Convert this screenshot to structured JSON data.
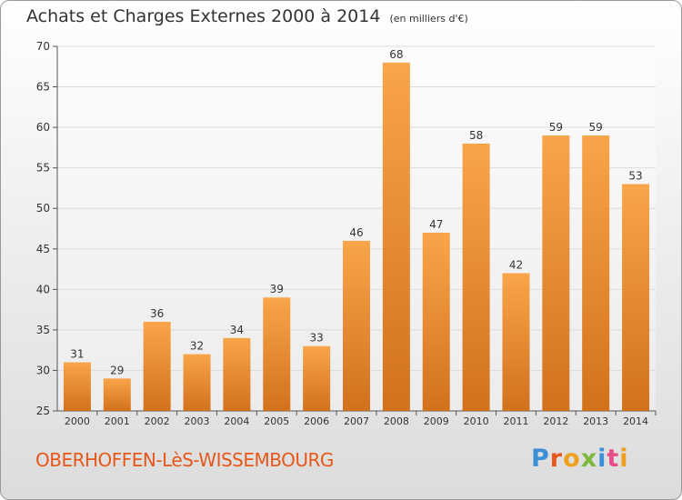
{
  "header": {
    "title": "Achats et Charges Externes 2000 à 2014",
    "unit": "(en milliers d'€)"
  },
  "footer": {
    "commune": "OBERHOFFEN-LèS-WISSEMBOURG",
    "logo": "Proxiti"
  },
  "colors": {
    "bar_top": "#f9a54a",
    "bar_bottom": "#d2711c",
    "axis": "#555555",
    "grid": "#dddddd",
    "commune_text": "#e8571a"
  },
  "chart_data": {
    "type": "bar",
    "title": "Achats et Charges Externes 2000 à 2014",
    "subtitle": "(en milliers d'€)",
    "xlabel": "",
    "ylabel": "",
    "categories": [
      "2000",
      "2001",
      "2002",
      "2003",
      "2004",
      "2005",
      "2006",
      "2007",
      "2008",
      "2009",
      "2010",
      "2011",
      "2012",
      "2013",
      "2014"
    ],
    "values": [
      31,
      29,
      36,
      32,
      34,
      39,
      33,
      46,
      68,
      47,
      58,
      42,
      59,
      59,
      53
    ],
    "ylim": [
      25,
      70
    ],
    "yticks": [
      25,
      30,
      35,
      40,
      45,
      50,
      55,
      60,
      65,
      70
    ],
    "grid": true
  }
}
